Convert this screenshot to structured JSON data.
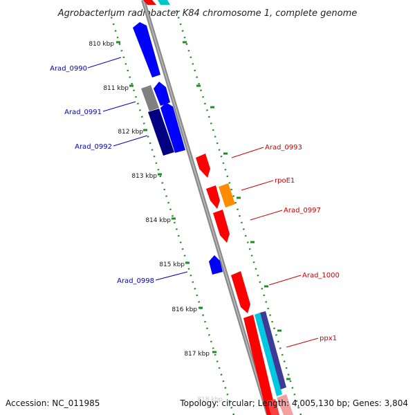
{
  "title": "Agrobacterium radiobacter K84 chromosome 1, complete genome",
  "footer": {
    "accession": "Accession: NC_011985",
    "summary": "Topology: circular; Length: 4,005,130 bp; Genes: 3,804"
  },
  "ticks": [
    "810 kbp",
    "811 kbp",
    "812 kbp",
    "813 kbp",
    "814 kbp",
    "815 kbp",
    "816 kbp",
    "817 kbp"
  ],
  "faded_tick": "818 kbp",
  "genes_left": [
    {
      "label": "Arad_0990",
      "color": "#0000cc"
    },
    {
      "label": "Arad_0991",
      "color": "#0000cc"
    },
    {
      "label": "Arad_0992",
      "color": "#0000cc"
    },
    {
      "label": "Arad_0998",
      "color": "#0000cc"
    }
  ],
  "genes_right": [
    {
      "label": "Arad_0993",
      "color": "#cc0000"
    },
    {
      "label": "rpoE1",
      "color": "#cc0000"
    },
    {
      "label": "Arad_0997",
      "color": "#cc0000"
    },
    {
      "label": "Arad_1000",
      "color": "#cc0000"
    },
    {
      "label": "ppx1",
      "color": "#cc0000"
    }
  ],
  "colors": {
    "forward_gene": "#ff0000",
    "reverse_gene": "#0000ff",
    "reverse_dark": "#000080",
    "gray_gene": "#808080",
    "orange_gene": "#ff8c00",
    "cyan_gene": "#00c8e0",
    "pink_gene": "#f4a0a0",
    "backbone": "#888888",
    "tick_color": "#228b22"
  }
}
